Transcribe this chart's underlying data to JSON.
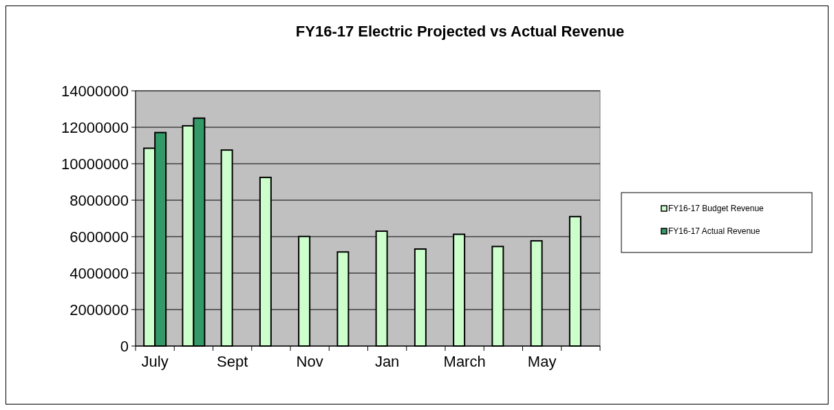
{
  "chart_data": {
    "type": "bar",
    "title": "FY16-17 Electric Projected vs Actual Revenue",
    "categories": [
      "July",
      null,
      "Sept",
      null,
      "Nov",
      null,
      "Jan",
      null,
      "March",
      null,
      "May",
      null
    ],
    "series": [
      {
        "name": "FY16-17 Budget Revenue",
        "color": "#ccffcc",
        "values": [
          10850000,
          12080000,
          10750000,
          9250000,
          6010000,
          5160000,
          6300000,
          5320000,
          6130000,
          5460000,
          5770000,
          7100000
        ]
      },
      {
        "name": "FY16-17 Actual Revenue",
        "color": "#339966",
        "values": [
          11710000,
          12500000,
          null,
          null,
          null,
          null,
          null,
          null,
          null,
          null,
          null,
          null
        ]
      }
    ],
    "ylim": [
      0,
      14000000
    ],
    "yticks": [
      0,
      2000000,
      4000000,
      6000000,
      8000000,
      10000000,
      12000000,
      14000000
    ],
    "grid": "y",
    "legend": "right"
  }
}
